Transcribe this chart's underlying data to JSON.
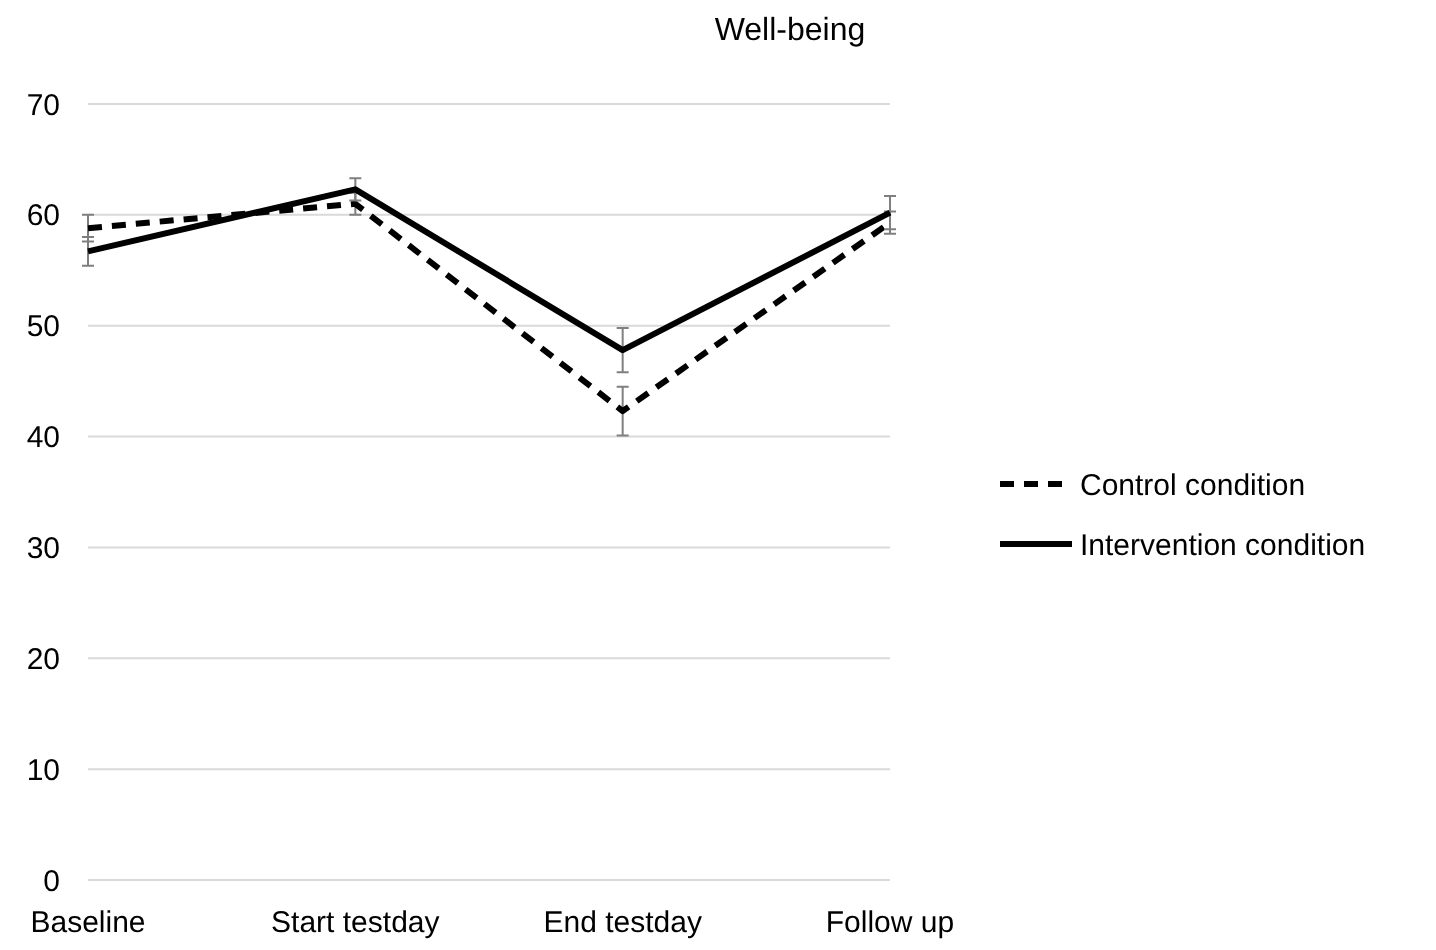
{
  "chart_data": {
    "type": "line",
    "title": "Well-being",
    "categories": [
      "Baseline",
      "Start testday",
      "End testday",
      "Follow up"
    ],
    "series": [
      {
        "name": "Control condition",
        "color": "#000000",
        "line_style": "dashed",
        "values": [
          58.8,
          61,
          42.3,
          59.3
        ],
        "errors": [
          1.2,
          1,
          2.2,
          1
        ]
      },
      {
        "name": "Intervention condition",
        "color": "#000000",
        "line_style": "solid",
        "values": [
          56.7,
          62.3,
          47.8,
          60.2
        ],
        "errors": [
          1.3,
          1,
          2,
          1.5
        ]
      }
    ],
    "ylim": [
      0,
      70
    ],
    "yticks": [
      0,
      10,
      20,
      30,
      40,
      50,
      60,
      70
    ],
    "grid": "y",
    "legend": "right",
    "marker": "none"
  }
}
